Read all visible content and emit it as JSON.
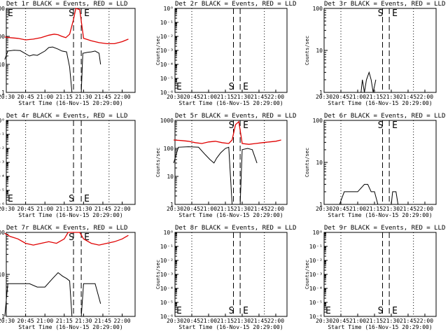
{
  "chart_data": {
    "type": "line",
    "event_markers": {
      "start_label": "S",
      "end_label": "E"
    },
    "x_tick_labels": [
      "20:30",
      "20:45",
      "21:00",
      "21:15",
      "21:30",
      "21:45",
      "22:00"
    ],
    "y_tick_labels_log": [
      "1",
      "10",
      "100",
      "1000"
    ],
    "y_tick_labels_exp": [
      "10⁰",
      "10⁻¹",
      "10⁻²",
      "10⁻³",
      "10⁻⁴",
      "10⁻⁵",
      "10⁻⁶"
    ],
    "ylabel": "Counts/sec",
    "xlabel": "Start Time (16-Nov-15 20:29:00)",
    "colors": {
      "events": "#000000",
      "lld": "#e00000"
    },
    "panels": [
      {
        "title": "Det 1r BLACK = Events, RED = LLD",
        "ylim": [
          1,
          1000
        ],
        "series": [
          {
            "color": "#e00000",
            "x": [
              20.48,
              20.55,
              20.65,
              20.75,
              20.85,
              20.95,
              21.05,
              21.12,
              21.17,
              21.22,
              21.27,
              21.32,
              21.37,
              21.4,
              21.45,
              21.5,
              21.6,
              21.7,
              21.8,
              21.9,
              22.0,
              22.08
            ],
            "y": [
              95,
              90,
              85,
              75,
              80,
              90,
              110,
              120,
              115,
              100,
              90,
              120,
              400,
              1000,
              900,
              85,
              70,
              60,
              55,
              55,
              65,
              80
            ]
          },
          {
            "color": "#000000",
            "x": [
              20.48,
              20.52,
              20.6,
              20.68,
              20.8,
              20.85,
              20.9,
              21.0,
              21.05,
              21.1,
              21.17,
              21.22,
              21.28,
              21.32,
              21.35,
              21.47,
              21.49,
              21.55,
              21.6,
              21.65,
              21.7,
              21.72
            ],
            "y": [
              15,
              30,
              32,
              31,
              20,
              22,
              21,
              30,
              40,
              42,
              35,
              30,
              28,
              8,
              1,
              1,
              25,
              27,
              28,
              30,
              25,
              10
            ]
          }
        ]
      },
      {
        "title": "Det 2r BLACK = Events, RED = LLD",
        "ylim": [
          1e-06,
          1
        ],
        "series": []
      },
      {
        "title": "Det 3r BLACK = Events, RED = LLD",
        "ylim": [
          1,
          100
        ],
        "series": [
          {
            "color": "#000000",
            "x": [
              21.05,
              21.07,
              21.1,
              21.13,
              21.17,
              21.2,
              21.23,
              21.27
            ],
            "y": [
              1,
              2,
              1,
              2,
              3,
              2,
              1,
              2
            ]
          }
        ]
      },
      {
        "title": "Det 4r BLACK = Events, RED = LLD",
        "ylim": [
          1e-06,
          1
        ],
        "series": []
      },
      {
        "title": "Det 5r BLACK = Events, RED = LLD",
        "ylim": [
          1,
          1000
        ],
        "series": [
          {
            "color": "#e00000",
            "x": [
              20.48,
              20.6,
              20.7,
              20.8,
              20.9,
              21.0,
              21.1,
              21.2,
              21.3,
              21.35,
              21.4,
              21.45,
              21.5,
              21.6,
              21.7,
              21.8,
              21.9,
              22.0,
              22.08
            ],
            "y": [
              200,
              190,
              180,
              160,
              150,
              170,
              180,
              160,
              150,
              200,
              700,
              900,
              150,
              140,
              150,
              160,
              170,
              180,
              200
            ]
          },
          {
            "color": "#000000",
            "x": [
              20.48,
              20.55,
              20.7,
              20.85,
              20.95,
              21.02,
              21.08,
              21.12,
              21.18,
              21.25,
              21.3,
              21.35,
              21.47,
              21.5,
              21.58,
              21.65,
              21.72
            ],
            "y": [
              30,
              110,
              115,
              110,
              60,
              40,
              30,
              45,
              70,
              100,
              110,
              1,
              1,
              90,
              100,
              90,
              30
            ]
          }
        ]
      },
      {
        "title": "Det 6r BLACK = Events, RED = LLD",
        "ylim": [
          1,
          100
        ],
        "series": [
          {
            "color": "#000000",
            "x": [
              20.73,
              20.8,
              20.9,
              21.0,
              21.1,
              21.15,
              21.2,
              21.25,
              21.3,
              21.33,
              21.5,
              21.52,
              21.57,
              21.6
            ],
            "y": [
              1,
              2,
              2,
              2,
              3,
              3,
              2,
              2,
              1,
              1,
              1,
              2,
              2,
              1
            ]
          }
        ]
      },
      {
        "title": "Det 7r BLACK = Events, RED = LLD",
        "ylim": [
          1,
          100
        ],
        "series": [
          {
            "color": "#e00000",
            "x": [
              20.48,
              20.55,
              20.65,
              20.75,
              20.85,
              20.95,
              21.05,
              21.15,
              21.25,
              21.3,
              21.35,
              21.4,
              21.45,
              21.5,
              21.6,
              21.7,
              21.8,
              21.9,
              22.0,
              22.08
            ],
            "y": [
              95,
              80,
              70,
              55,
              50,
              55,
              60,
              55,
              70,
              100,
              100,
              100,
              100,
              70,
              55,
              50,
              55,
              60,
              70,
              85
            ]
          },
          {
            "color": "#000000",
            "x": [
              20.48,
              20.52,
              20.6,
              20.7,
              20.8,
              20.9,
              21.0,
              21.1,
              21.17,
              21.23,
              21.28,
              21.32,
              21.35,
              21.47,
              21.5,
              21.58,
              21.65,
              21.72
            ],
            "y": [
              1,
              6,
              6,
              6,
              6,
              5,
              5,
              8,
              11,
              9,
              8,
              7,
              1,
              1,
              6,
              6,
              6,
              2
            ]
          }
        ]
      },
      {
        "title": "Det 8r BLACK = Events, RED = LLD",
        "ylim": [
          1e-06,
          1
        ],
        "series": []
      },
      {
        "title": "Det 9r BLACK = Events, RED = LLD",
        "ylim": [
          1e-06,
          1
        ],
        "series": []
      }
    ]
  }
}
